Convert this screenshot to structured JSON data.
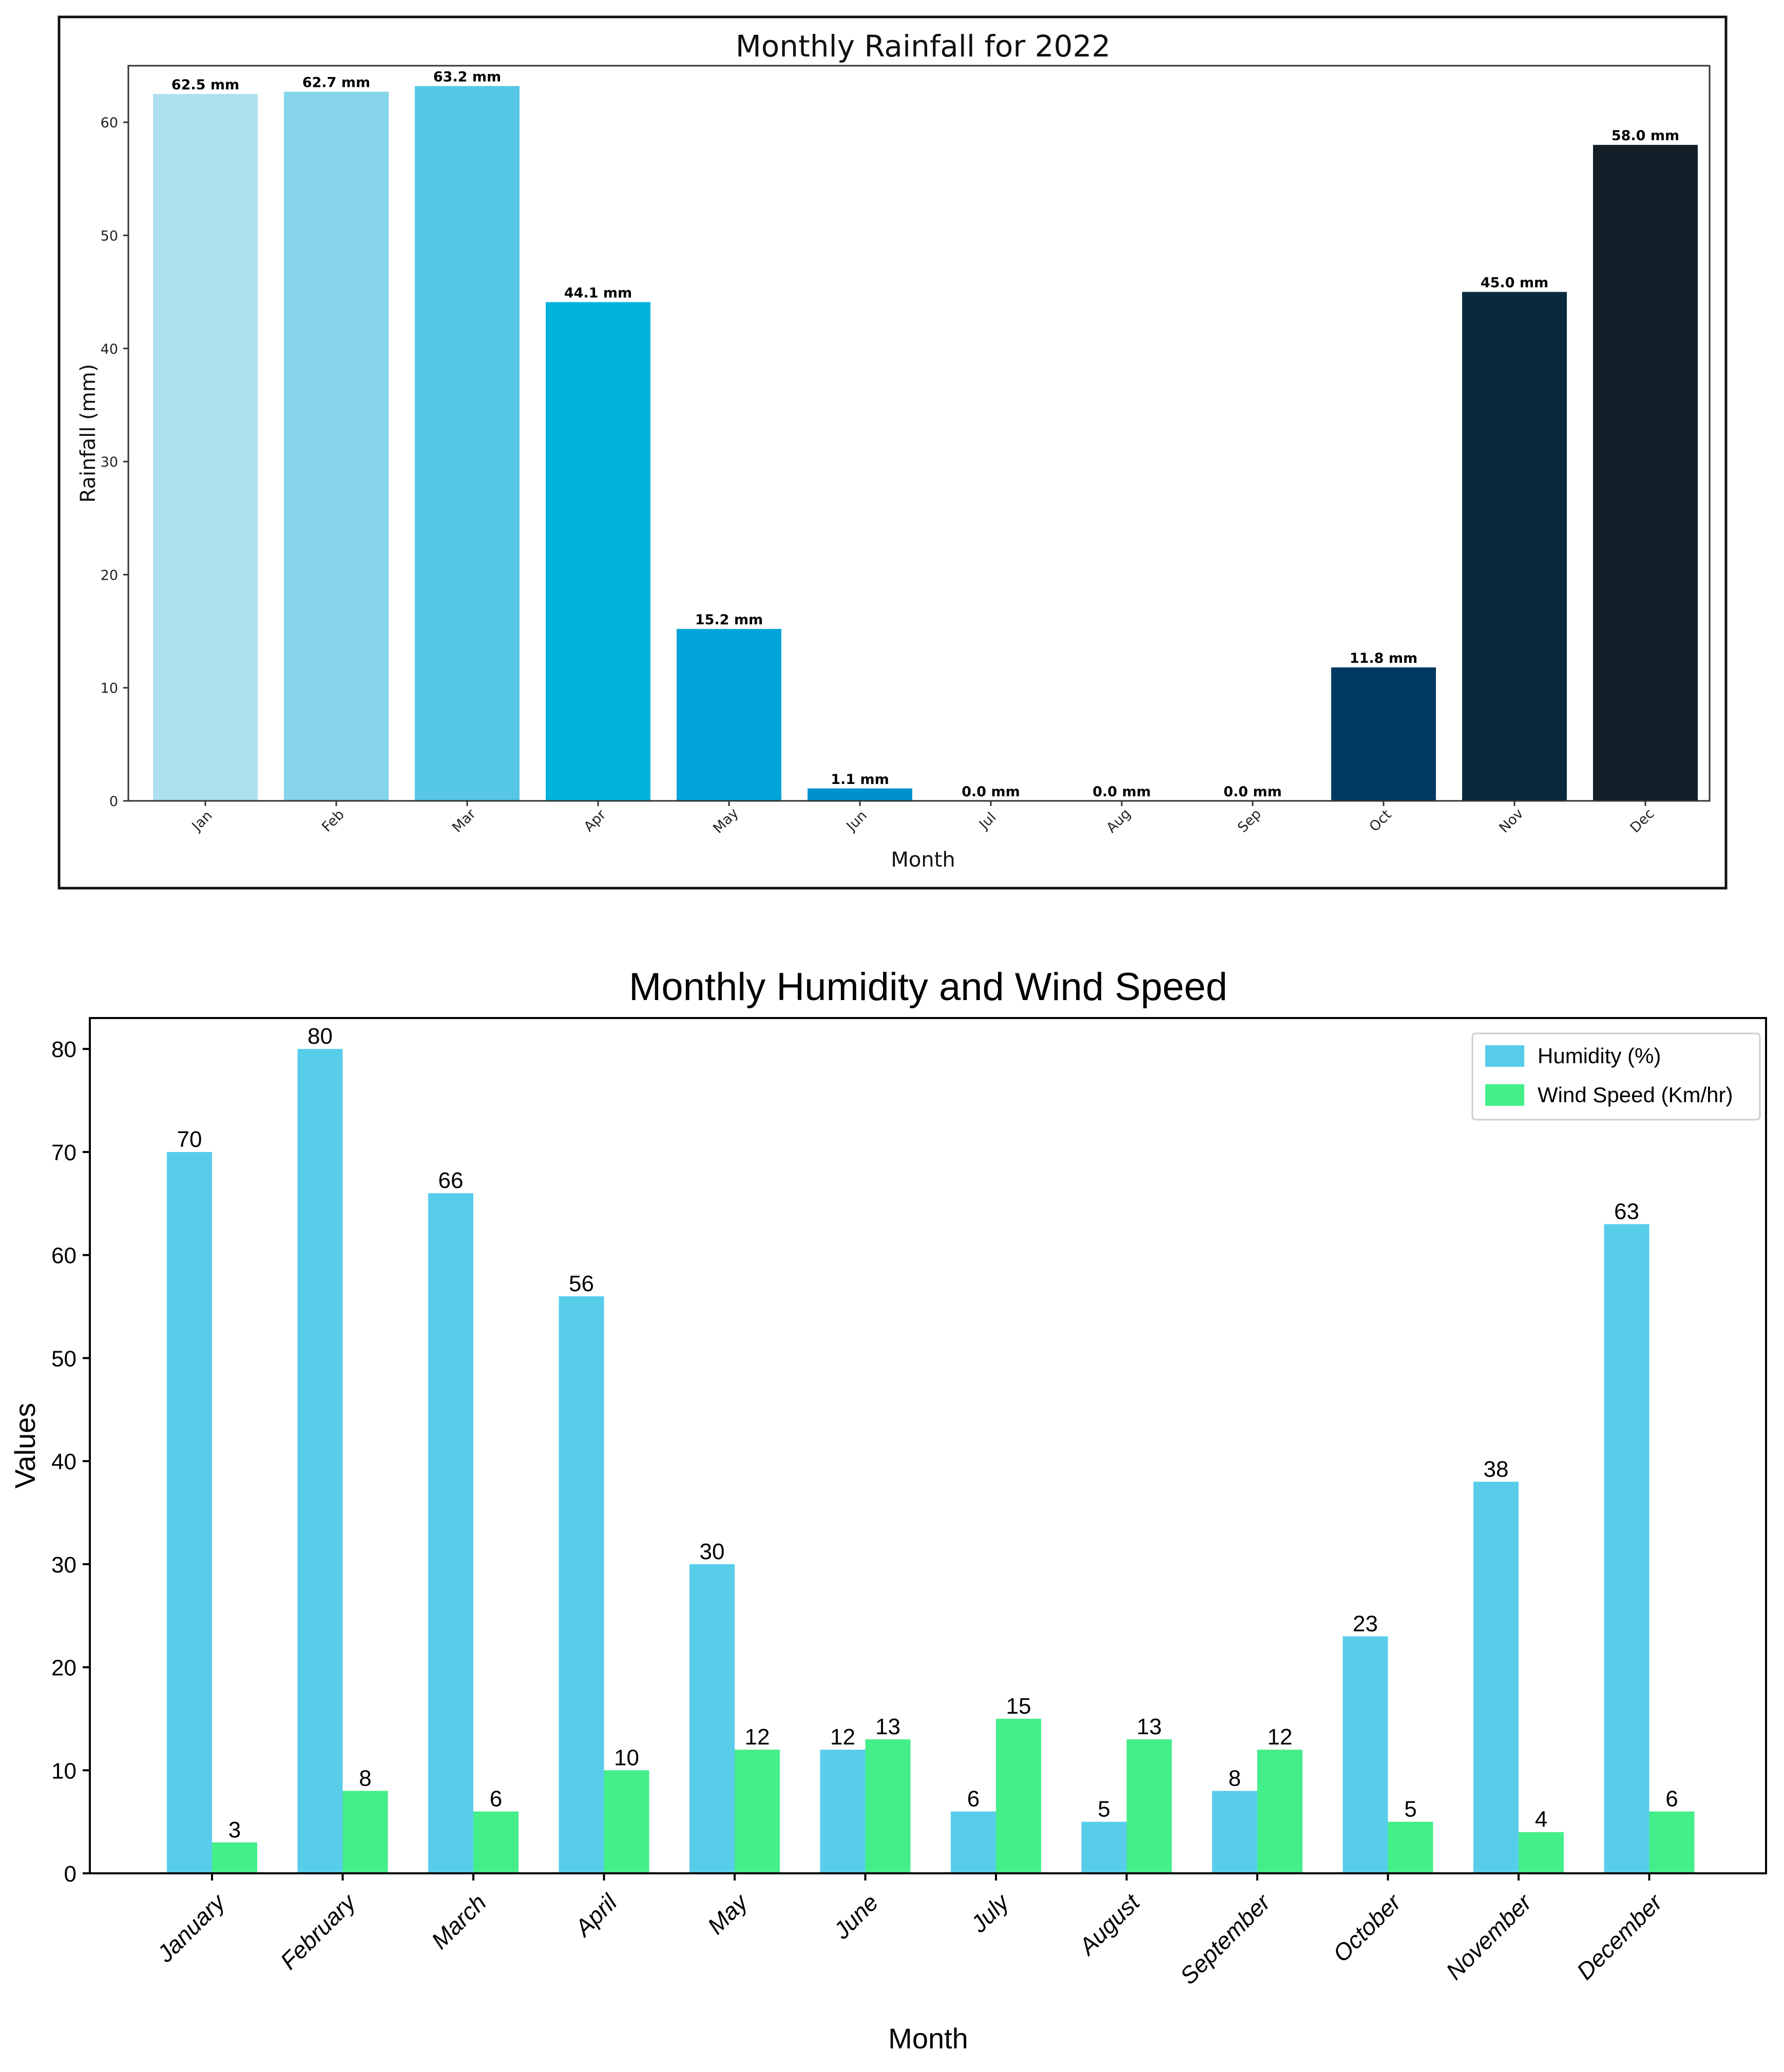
{
  "chart_data": [
    {
      "type": "bar",
      "title": "Monthly Rainfall for 2022",
      "xlabel": "Month",
      "ylabel": "Rainfall (mm)",
      "ylim": [
        0,
        65
      ],
      "yticks": [
        0,
        10,
        20,
        30,
        40,
        50,
        60
      ],
      "grid": false,
      "categories": [
        "Jan",
        "Feb",
        "Mar",
        "Apr",
        "May",
        "Jun",
        "Jul",
        "Aug",
        "Sep",
        "Oct",
        "Nov",
        "Dec"
      ],
      "values": [
        62.5,
        62.7,
        63.2,
        44.1,
        15.2,
        1.1,
        0.0,
        0.0,
        0.0,
        11.8,
        45.0,
        58.0
      ],
      "data_labels": [
        "62.5 mm",
        "62.7 mm",
        "63.2 mm",
        "44.1 mm",
        "15.2 mm",
        "1.1 mm",
        "0.0 mm",
        "0.0 mm",
        "0.0 mm",
        "11.8 mm",
        "45.0 mm",
        "58.0 mm"
      ],
      "colors": [
        "#ade0ef",
        "#85d4ea",
        "#56c6e5",
        "#00b4dd",
        "#00a4d9",
        "#0090ce",
        "#0080bb",
        "#006fa1",
        "#005780",
        "#003a60",
        "#092a3d",
        "#131f28"
      ]
    },
    {
      "type": "bar",
      "title": "Monthly Humidity and Wind Speed",
      "xlabel": "Month",
      "ylabel": "Values",
      "ylim": [
        0,
        83
      ],
      "yticks": [
        0,
        10,
        20,
        30,
        40,
        50,
        60,
        70,
        80
      ],
      "grid": false,
      "legend_position": "top-right",
      "categories": [
        "January",
        "February",
        "March",
        "April",
        "May",
        "June",
        "July",
        "August",
        "September",
        "October",
        "November",
        "December"
      ],
      "series": [
        {
          "name": "Humidity (%)",
          "color": "#58cdea",
          "values": [
            70,
            80,
            66,
            56,
            30,
            12,
            6,
            5,
            8,
            23,
            38,
            63
          ]
        },
        {
          "name": "Wind Speed (Km/hr)",
          "color": "#44ee88",
          "values": [
            3,
            8,
            6,
            10,
            12,
            13,
            15,
            13,
            12,
            5,
            4,
            6
          ]
        }
      ]
    }
  ]
}
